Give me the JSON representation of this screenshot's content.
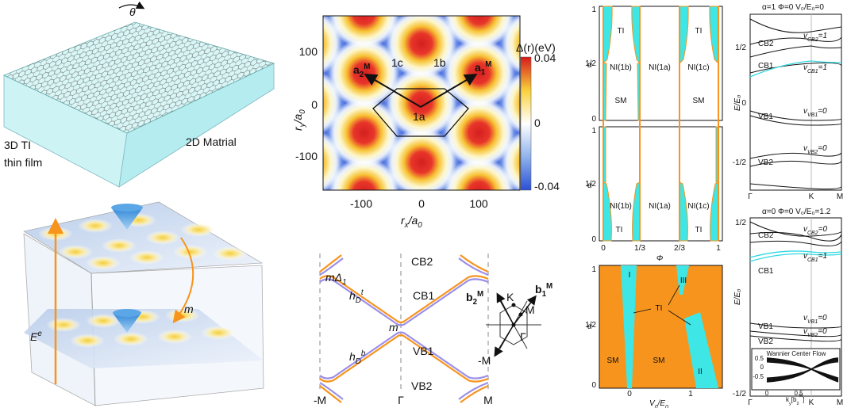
{
  "film_panel": {
    "twist_angle": "θ",
    "substrate_label": [
      "3D TI",
      "thin film"
    ],
    "material_label": "2D Matrial"
  },
  "bulk_panel": {
    "energy_label": [
      "E",
      "e"
    ],
    "mass_label": "m"
  },
  "potential_map": {
    "colorbar_title": "Δ(r)(eV)",
    "colorbar_ticks": [
      "0.04",
      "0",
      "-0.04"
    ],
    "y_axis_label": [
      "r",
      "y",
      "/a",
      "0"
    ],
    "x_axis_label": [
      "r",
      "x",
      "/a",
      "0"
    ],
    "y_ticks": [
      "100",
      "0",
      "-100"
    ],
    "x_ticks": [
      "-100",
      "0",
      "100"
    ],
    "vector_labels": [
      [
        "a",
        "2",
        "M"
      ],
      [
        "a",
        "1",
        "M"
      ]
    ],
    "site_labels": [
      "1c",
      "1b",
      "1a"
    ]
  },
  "band_schematic": {
    "band_labels": [
      "CB2",
      "CB1",
      "VB1",
      "VB2"
    ],
    "gap_label": [
      "m",
      "Δ",
      "1"
    ],
    "crossing_label": "m",
    "top_label": [
      "h",
      "D",
      "t"
    ],
    "bottom_label": [
      "h",
      "D",
      "b"
    ],
    "x_ticks": [
      "-M",
      "Γ",
      "M"
    ]
  },
  "brillouin_zone": {
    "vectors": [
      [
        "b",
        "2",
        "M"
      ],
      [
        "b",
        "1",
        "M"
      ]
    ],
    "points": [
      "K",
      "M",
      "Γ",
      "-M"
    ]
  },
  "phase_diagrams": {
    "top": {
      "regions": [
        "TI",
        "TI",
        "SM",
        "SM",
        "NI(1b)",
        "NI(1a)",
        "NI(1c)"
      ],
      "y_ticks": [
        "1",
        "1/2",
        "0"
      ],
      "y_label": "α"
    },
    "middle": {
      "regions": [
        "NI(1b)",
        "NI(1a)",
        "NI(1c)",
        "TI",
        "TI"
      ],
      "y_ticks": [
        "1",
        "1/2",
        "0"
      ],
      "y_label": "α",
      "x_ticks": [
        "0",
        "1/3",
        "2/3",
        "1"
      ],
      "x_label": "Φ"
    },
    "bottom": {
      "regions": [
        "I",
        "III",
        "TI",
        "SM",
        "SM",
        "II"
      ],
      "y_ticks": [
        "1",
        "1/2",
        "0"
      ],
      "y_label": "α",
      "x_ticks": [
        "0",
        "1"
      ],
      "x_label": [
        "V",
        "0",
        "/E",
        "0"
      ]
    }
  },
  "band_structures": [
    {
      "title": "α=1  Φ=0  V₀/E₀=0",
      "bands": [
        "CB2",
        "CB1",
        "VB1",
        "VB2"
      ],
      "velocities": [
        [
          "v",
          "CB2",
          "=1"
        ],
        [
          "v",
          "CB1",
          "=1"
        ],
        [
          "v",
          "VB1",
          "=0"
        ],
        [
          "v",
          "VB2",
          "=0"
        ]
      ],
      "y_ticks": [
        "1/2",
        "0",
        "-1/2"
      ],
      "y_label": "E/E₀",
      "x_ticks": [
        "Γ",
        "K",
        "M"
      ]
    },
    {
      "title": "α=0  Φ=0  V₀/E₀=1.2",
      "bands": [
        "CB2",
        "CB1",
        "VB1",
        "VB2"
      ],
      "velocities": [
        [
          "v",
          "CB2",
          "=0"
        ],
        [
          "v",
          "CB1",
          "=1"
        ],
        [
          "v",
          "VB1",
          "=0"
        ],
        [
          "v",
          "VB2",
          "=0"
        ]
      ],
      "y_ticks": [
        "1/2",
        "-1/2"
      ],
      "y_label": "E/E₀",
      "x_ticks": [
        "Γ",
        "K",
        "M"
      ],
      "inset": {
        "title": "Wannier Center Flow",
        "y_ticks": [
          "0.5",
          "0",
          "-0.5"
        ],
        "x_ticks": [
          "0",
          "0.5"
        ],
        "x_label": [
          "k",
          "y",
          "[b",
          "2",
          "M",
          "]"
        ]
      }
    }
  ]
}
